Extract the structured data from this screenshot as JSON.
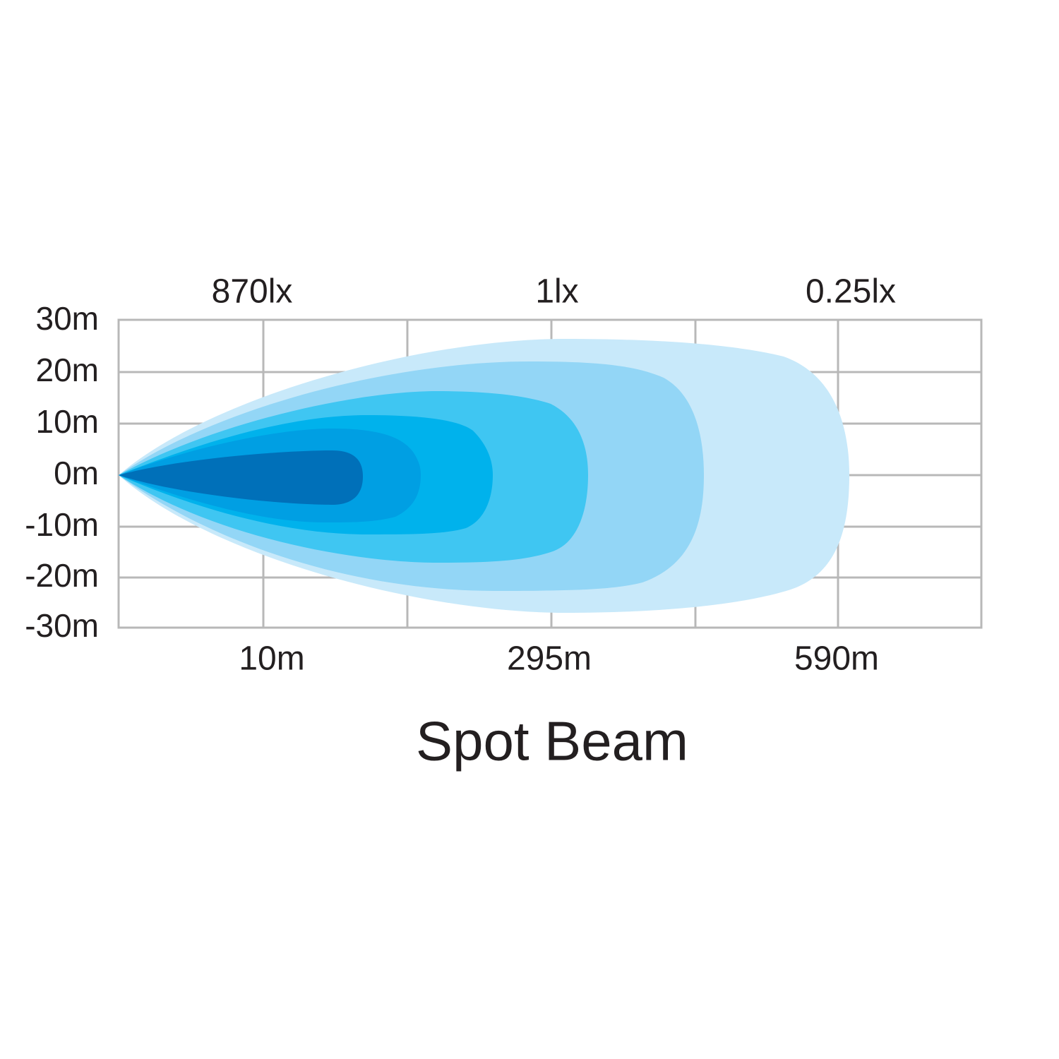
{
  "title": "Spot Beam",
  "y_axis_labels": [
    "30m",
    "20m",
    "10m",
    "0m",
    "-10m",
    "-20m",
    "-30m"
  ],
  "top_labels": [
    "870lx",
    "1lx",
    "0.25lx"
  ],
  "bottom_labels": [
    "10m",
    "295m",
    "590m"
  ]
}
